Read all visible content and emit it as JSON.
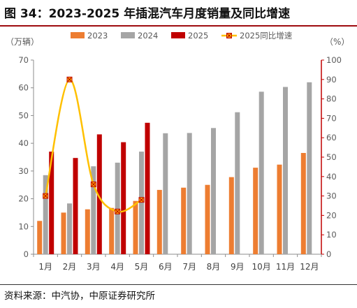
{
  "figure": {
    "title": "图 34：2023-2025 年插混汽车月度销量及同比增速",
    "source": "资料来源：中汽协，中原证券研究所"
  },
  "colors": {
    "s2023": "#ED7D31",
    "s2024": "#A5A5A5",
    "s2025": "#C00000",
    "yoy": "#FFC000",
    "marker_edge": "#C00000",
    "right_axis": "#C00000",
    "grid": "#d9d9d9",
    "title_rule": "#9e0b0f"
  },
  "chart_data": {
    "type": "bar",
    "categories": [
      "1月",
      "2月",
      "3月",
      "4月",
      "5月",
      "6月",
      "7月",
      "8月",
      "9月",
      "10月",
      "11月",
      "12月"
    ],
    "series": [
      {
        "name": "2023",
        "axis": "left",
        "values": [
          12,
          15,
          16.2,
          16.7,
          19.2,
          23.2,
          24,
          25,
          27.8,
          31.2,
          32.3,
          36.5
        ]
      },
      {
        "name": "2024",
        "axis": "left",
        "values": [
          28.5,
          18.3,
          31.7,
          33,
          37,
          43.6,
          43.7,
          45.5,
          51.2,
          58.6,
          60.3,
          62
        ]
      },
      {
        "name": "2025",
        "axis": "left",
        "values": [
          37,
          34.7,
          43.2,
          40.4,
          47.4,
          null,
          null,
          null,
          null,
          null,
          null,
          null
        ]
      },
      {
        "name": "2025同比增速",
        "axis": "right",
        "type": "line",
        "values": [
          30,
          90,
          36,
          22,
          28,
          null,
          null,
          null,
          null,
          null,
          null,
          null
        ]
      }
    ],
    "ylabel_left": "（万辆）",
    "ylabel_right": "（%）",
    "ylim_left": [
      0,
      70
    ],
    "ylim_right": [
      0,
      100
    ],
    "yticks_left": [
      "0",
      "10",
      "20",
      "30",
      "40",
      "50",
      "60",
      "70"
    ],
    "yticks_right": [
      "0",
      "10",
      "20",
      "30",
      "40",
      "50",
      "60",
      "70",
      "80",
      "90",
      "100"
    ],
    "legend_position": "top",
    "grid": false
  }
}
